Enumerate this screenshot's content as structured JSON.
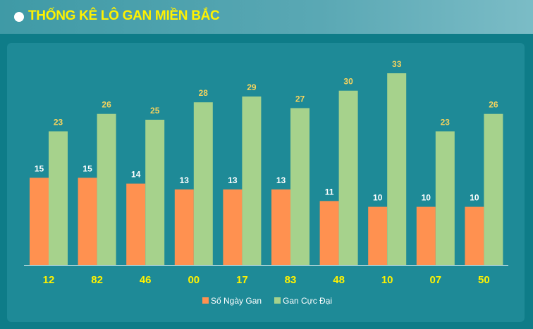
{
  "header": {
    "title": "THỐNG KÊ LÔ GAN MIỀN BẮC"
  },
  "colors": {
    "series1": "#ff9150",
    "series2": "#a6d28c",
    "series1_label": "#ffffff",
    "series2_label": "#f4d35e"
  },
  "chart_data": {
    "type": "bar",
    "title": "",
    "xlabel": "",
    "ylabel": "",
    "categories": [
      "12",
      "82",
      "46",
      "00",
      "17",
      "83",
      "48",
      "10",
      "07",
      "50"
    ],
    "series": [
      {
        "name": "Số Ngày Gan",
        "values": [
          15,
          15,
          14,
          13,
          13,
          13,
          11,
          10,
          10,
          10
        ]
      },
      {
        "name": "Gan Cực Đại",
        "values": [
          23,
          26,
          25,
          28,
          29,
          27,
          30,
          33,
          23,
          26
        ]
      }
    ],
    "ylim": [
      0,
      33
    ],
    "grid": false,
    "legend": "bottom-center",
    "data_labels": true
  }
}
